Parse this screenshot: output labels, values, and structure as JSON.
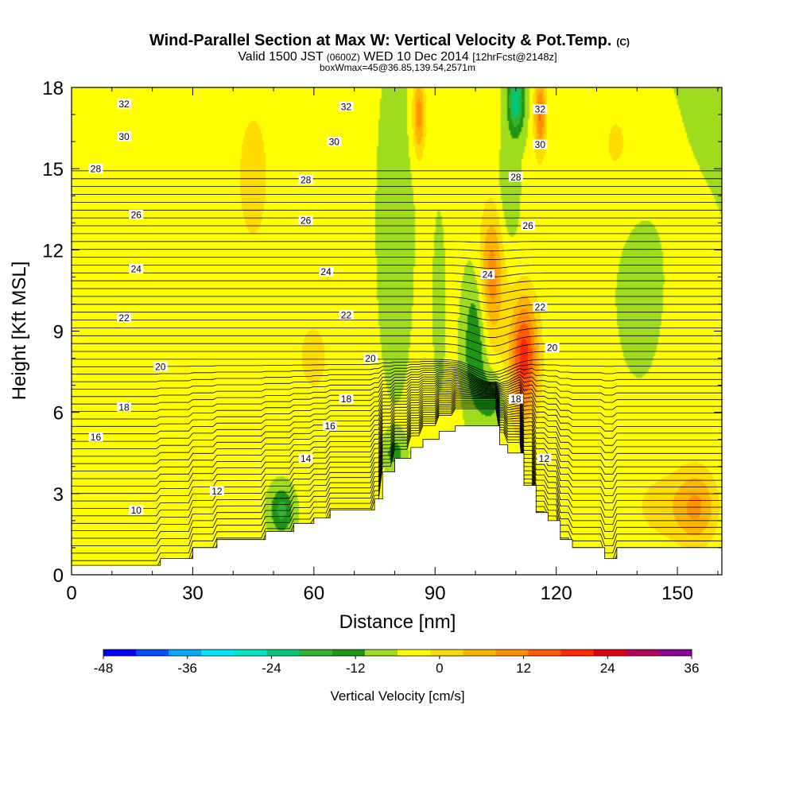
{
  "chart_data": {
    "type": "heatmap",
    "title": "Wind-Parallel Section at Max W: Vertical Velocity & Pot.Temp.",
    "title_suffix": "(C)",
    "subtitle": {
      "valid_label": "Valid 1500 JST",
      "utc_label": "(0600Z)",
      "date_label": "WED 10 Dec 2014",
      "forecast_label": "[12hrFcst@2148z]"
    },
    "box_label": "boxWmax=45@36.85,139.54,2571m",
    "xlabel": "Distance [nm]",
    "ylabel": "Height [Kft MSL]",
    "xlim": [
      0,
      161
    ],
    "ylim": [
      0,
      18
    ],
    "x_ticks": [
      0,
      30,
      60,
      90,
      120,
      150
    ],
    "y_ticks": [
      0,
      3,
      6,
      9,
      12,
      15,
      18
    ],
    "colorbar": {
      "label": "Vertical Velocity [cm/s]",
      "min": -48,
      "max": 36,
      "step": 6,
      "tick_labels": [
        "-48",
        "-36",
        "-24",
        "-12",
        "0",
        "12",
        "24",
        "36"
      ],
      "colors": [
        "#0000ff",
        "#0050ff",
        "#00aaff",
        "#00e6ff",
        "#00e6c8",
        "#00c878",
        "#32b432",
        "#1e9614",
        "#a0dc1e",
        "#ffff00",
        "#ffdc00",
        "#ffb400",
        "#ff9100",
        "#ff5a00",
        "#ff2800",
        "#e10014",
        "#b4005a",
        "#8c0096"
      ]
    },
    "terrain": [
      [
        0,
        0.35
      ],
      [
        22,
        0.35
      ],
      [
        22,
        0.6
      ],
      [
        30,
        0.6
      ],
      [
        30,
        1.0
      ],
      [
        36,
        1.0
      ],
      [
        36,
        1.3
      ],
      [
        48,
        1.3
      ],
      [
        48,
        1.6
      ],
      [
        55,
        1.6
      ],
      [
        55,
        1.9
      ],
      [
        60,
        1.9
      ],
      [
        60,
        2.1
      ],
      [
        64,
        2.1
      ],
      [
        64,
        2.4
      ],
      [
        75,
        2.4
      ],
      [
        75,
        2.8
      ],
      [
        77,
        2.8
      ],
      [
        77,
        3.8
      ],
      [
        80,
        3.8
      ],
      [
        80,
        4.3
      ],
      [
        84,
        4.3
      ],
      [
        84,
        4.7
      ],
      [
        87,
        4.7
      ],
      [
        87,
        5.0
      ],
      [
        91,
        5.0
      ],
      [
        91,
        5.3
      ],
      [
        95,
        5.3
      ],
      [
        95,
        5.5
      ],
      [
        106,
        5.5
      ],
      [
        106,
        4.8
      ],
      [
        108,
        4.8
      ],
      [
        108,
        4.5
      ],
      [
        112,
        4.5
      ],
      [
        112,
        3.3
      ],
      [
        115,
        3.3
      ],
      [
        115,
        2.3
      ],
      [
        118,
        2.3
      ],
      [
        118,
        2.0
      ],
      [
        121,
        2.0
      ],
      [
        121,
        1.3
      ],
      [
        124,
        1.3
      ],
      [
        124,
        1.0
      ],
      [
        132,
        1.0
      ],
      [
        132,
        0.6
      ],
      [
        135,
        0.6
      ],
      [
        135,
        1.0
      ],
      [
        161,
        1.0
      ]
    ],
    "theta_contours": [
      {
        "theta": 10,
        "label_x": 16,
        "label_y": 2.4
      },
      {
        "theta": 12,
        "label_x": 36,
        "label_y": 3.1
      },
      {
        "theta": 12,
        "label_x": 117,
        "label_y": 4.3
      },
      {
        "theta": 14,
        "label_x": 58,
        "label_y": 4.3
      },
      {
        "theta": 16,
        "label_x": 6,
        "label_y": 5.1
      },
      {
        "theta": 16,
        "label_x": 64,
        "label_y": 5.5
      },
      {
        "theta": 18,
        "label_x": 13,
        "label_y": 6.2
      },
      {
        "theta": 18,
        "label_x": 68,
        "label_y": 6.5
      },
      {
        "theta": 18,
        "label_x": 110,
        "label_y": 6.5
      },
      {
        "theta": 20,
        "label_x": 22,
        "label_y": 7.7
      },
      {
        "theta": 20,
        "label_x": 74,
        "label_y": 8.0
      },
      {
        "theta": 20,
        "label_x": 119,
        "label_y": 8.4
      },
      {
        "theta": 22,
        "label_x": 13,
        "label_y": 9.5
      },
      {
        "theta": 22,
        "label_x": 68,
        "label_y": 9.6
      },
      {
        "theta": 22,
        "label_x": 116,
        "label_y": 9.9
      },
      {
        "theta": 24,
        "label_x": 16,
        "label_y": 11.3
      },
      {
        "theta": 24,
        "label_x": 63,
        "label_y": 11.2
      },
      {
        "theta": 24,
        "label_x": 103,
        "label_y": 11.1
      },
      {
        "theta": 26,
        "label_x": 16,
        "label_y": 13.3
      },
      {
        "theta": 26,
        "label_x": 58,
        "label_y": 13.1
      },
      {
        "theta": 26,
        "label_x": 113,
        "label_y": 12.9
      },
      {
        "theta": 28,
        "label_x": 6,
        "label_y": 15.0
      },
      {
        "theta": 28,
        "label_x": 58,
        "label_y": 14.6
      },
      {
        "theta": 28,
        "label_x": 110,
        "label_y": 14.7
      },
      {
        "theta": 30,
        "label_x": 13,
        "label_y": 16.2
      },
      {
        "theta": 30,
        "label_x": 65,
        "label_y": 16.0
      },
      {
        "theta": 30,
        "label_x": 116,
        "label_y": 15.9
      },
      {
        "theta": 32,
        "label_x": 13,
        "label_y": 17.4
      },
      {
        "theta": 32,
        "label_x": 68,
        "label_y": 17.3
      },
      {
        "theta": 32,
        "label_x": 116,
        "label_y": 17.2
      }
    ],
    "w_features": [
      {
        "x": 0,
        "y": 9,
        "w": 6,
        "sx": 200,
        "sy": 20
      },
      {
        "x": 112,
        "y": 8,
        "w": 32,
        "sx": 3.5,
        "sy": 2.2
      },
      {
        "x": 104,
        "y": 11,
        "w": 20,
        "sx": 3,
        "sy": 2.5
      },
      {
        "x": 108,
        "y": 14,
        "w": -6,
        "sx": 2.5,
        "sy": 1.8
      },
      {
        "x": 110,
        "y": 17.5,
        "w": -24,
        "sx": 2,
        "sy": 1.2
      },
      {
        "x": 100,
        "y": 8.5,
        "w": -14,
        "sx": 3,
        "sy": 2.5
      },
      {
        "x": 104,
        "y": 6.5,
        "w": -10,
        "sx": 3,
        "sy": 1
      },
      {
        "x": 91,
        "y": 10,
        "w": -6,
        "sx": 1.5,
        "sy": 3
      },
      {
        "x": 52,
        "y": 2.4,
        "w": -16,
        "sx": 3,
        "sy": 0.9
      },
      {
        "x": 80,
        "y": 4.5,
        "w": -10,
        "sx": 2.5,
        "sy": 0.6
      },
      {
        "x": 116,
        "y": 17,
        "w": 24,
        "sx": 1.5,
        "sy": 1.5
      },
      {
        "x": 86,
        "y": 17,
        "w": 20,
        "sx": 1.5,
        "sy": 1.5
      },
      {
        "x": 155,
        "y": 2.5,
        "w": 14,
        "sx": 5,
        "sy": 1.5
      },
      {
        "x": 148,
        "y": 2.5,
        "w": 9,
        "sx": 10,
        "sy": 1.5
      },
      {
        "x": 80,
        "y": 12,
        "w": -5,
        "sx": 5,
        "sy": 6
      },
      {
        "x": 135,
        "y": 16,
        "w": 6,
        "sx": 8,
        "sy": 3
      },
      {
        "x": 140,
        "y": 11,
        "w": -3,
        "sx": 5,
        "sy": 3
      },
      {
        "x": 45,
        "y": 15,
        "w": 5,
        "sx": 6,
        "sy": 4
      },
      {
        "x": 60,
        "y": 8,
        "w": 4,
        "sx": 8,
        "sy": 3
      },
      {
        "x": 15,
        "y": 6,
        "w": 3,
        "sx": 10,
        "sy": 2
      }
    ]
  }
}
